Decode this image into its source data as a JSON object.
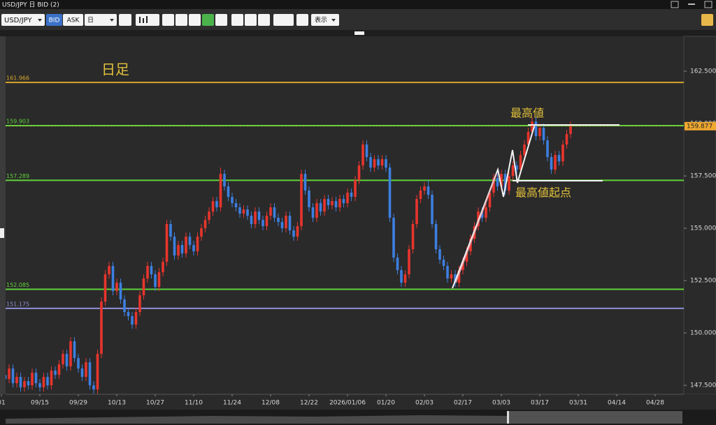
{
  "window": {
    "title": "USD/JPY 日 BID (2)",
    "toolbar": {
      "symbol": "USD/JPY",
      "bid": "BID",
      "ask": "ASK",
      "period": "日",
      "view": "表示"
    }
  },
  "chart_data": {
    "type": "candlestick",
    "annotations": {
      "label": "日足",
      "high": "最高値",
      "high_origin": "最高値起点"
    },
    "up_color": "#e8352d",
    "down_color": "#3d7fe0",
    "last_price": 159.877,
    "ylim": [
      147.07,
      164.17
    ],
    "yticks": [
      {
        "value": 147.5,
        "label": "147.500"
      },
      {
        "value": 150,
        "label": "150.000"
      },
      {
        "value": 152.5,
        "label": "152.500"
      },
      {
        "value": 155,
        "label": "155.000"
      },
      {
        "value": 157.5,
        "label": "157.500"
      },
      {
        "value": 160,
        "label": "160.000"
      },
      {
        "value": 162.5,
        "label": "162.500"
      }
    ],
    "levels": [
      {
        "value": 161.966,
        "color": "#d9a62e"
      },
      {
        "value": 159.903,
        "color": "#5fd33a"
      },
      {
        "value": 157.289,
        "color": "#5fd33a"
      },
      {
        "value": 152.085,
        "color": "#5fd33a"
      },
      {
        "value": 151.175,
        "color": "#8f8fd8"
      }
    ],
    "categories": [
      "01",
      null,
      null,
      null,
      null,
      null,
      null,
      null,
      null,
      null,
      "09/15",
      null,
      null,
      null,
      null,
      null,
      null,
      null,
      null,
      null,
      "09/29",
      null,
      null,
      null,
      null,
      null,
      null,
      null,
      null,
      null,
      "10/13",
      null,
      null,
      null,
      null,
      null,
      null,
      null,
      null,
      null,
      "10/27",
      null,
      null,
      null,
      null,
      null,
      null,
      null,
      null,
      null,
      "11/10",
      null,
      null,
      null,
      null,
      null,
      null,
      null,
      null,
      null,
      "11/24",
      null,
      null,
      null,
      null,
      null,
      null,
      null,
      null,
      null,
      "12/08",
      null,
      null,
      null,
      null,
      null,
      null,
      null,
      null,
      null,
      "12/22",
      null,
      null,
      null,
      null,
      null,
      null,
      null,
      null,
      null,
      "2026/01/06",
      null,
      null,
      null,
      null,
      null,
      null,
      null,
      null,
      null,
      "01/20",
      null,
      null,
      null,
      null,
      null,
      null,
      null,
      null,
      null,
      "02/03",
      null,
      null,
      null,
      null,
      null,
      null,
      null,
      null,
      null,
      "02/17",
      null,
      null,
      null,
      null,
      null,
      null,
      null,
      null,
      null,
      "03/03",
      null,
      null,
      null,
      null,
      null,
      null,
      null,
      null,
      null,
      "03/17",
      null,
      null,
      null,
      null,
      null,
      null,
      null,
      null,
      null,
      "03/31",
      null,
      null,
      null,
      null,
      null,
      null,
      null,
      null,
      null,
      "04/14",
      null,
      null,
      null,
      null,
      null,
      null,
      null,
      null,
      null,
      "04/28",
      null,
      null,
      null,
      null,
      null
    ],
    "ohlc": [
      [
        148.2,
        148.4,
        147.8,
        148.0
      ],
      [
        148.0,
        148.2,
        147.6,
        147.8
      ],
      [
        147.8,
        148.5,
        147.6,
        148.3
      ],
      [
        148.3,
        148.5,
        147.4,
        147.6
      ],
      [
        147.6,
        148.1,
        147.4,
        147.9
      ],
      [
        147.9,
        148.1,
        147.2,
        147.4
      ],
      [
        147.4,
        147.9,
        147.2,
        147.7
      ],
      [
        147.7,
        147.9,
        147.3,
        147.5
      ],
      [
        147.5,
        148.3,
        147.3,
        148.1
      ],
      [
        148.1,
        148.3,
        147.4,
        147.6
      ],
      [
        147.6,
        147.8,
        147.2,
        147.4
      ],
      [
        147.4,
        148.1,
        147.2,
        147.9
      ],
      [
        147.9,
        148.1,
        147.3,
        147.5
      ],
      [
        147.5,
        148.4,
        147.3,
        148.2
      ],
      [
        148.2,
        148.4,
        147.8,
        148.0
      ],
      [
        148.0,
        148.7,
        147.8,
        148.5
      ],
      [
        148.5,
        149.2,
        148.3,
        149.0
      ],
      [
        149.0,
        149.2,
        148.2,
        148.4
      ],
      [
        148.4,
        149.8,
        148.2,
        149.6
      ],
      [
        149.6,
        149.8,
        148.6,
        148.8
      ],
      [
        148.8,
        149.0,
        148.1,
        148.3
      ],
      [
        148.3,
        148.5,
        147.7,
        147.9
      ],
      [
        147.9,
        148.8,
        147.7,
        148.6
      ],
      [
        148.6,
        148.8,
        147.3,
        147.5
      ],
      [
        147.5,
        147.7,
        147.1,
        147.3
      ],
      [
        147.3,
        149.2,
        147.1,
        149.0
      ],
      [
        149.0,
        151.7,
        148.8,
        151.5
      ],
      [
        151.5,
        153.0,
        151.3,
        152.8
      ],
      [
        152.8,
        153.4,
        152.6,
        153.2
      ],
      [
        153.2,
        153.4,
        151.8,
        152.0
      ],
      [
        152.0,
        152.6,
        151.8,
        152.4
      ],
      [
        152.4,
        152.6,
        151.4,
        151.6
      ],
      [
        151.6,
        151.8,
        150.8,
        151.0
      ],
      [
        151.0,
        151.2,
        150.6,
        150.8
      ],
      [
        150.8,
        151.0,
        150.2,
        150.4
      ],
      [
        150.4,
        151.2,
        150.2,
        151.0
      ],
      [
        151.0,
        152.0,
        150.8,
        151.8
      ],
      [
        151.8,
        152.8,
        151.6,
        152.6
      ],
      [
        152.6,
        153.4,
        152.4,
        153.2
      ],
      [
        153.2,
        153.4,
        152.6,
        152.8
      ],
      [
        152.8,
        153.0,
        152.0,
        152.2
      ],
      [
        152.2,
        153.1,
        152.0,
        152.9
      ],
      [
        152.9,
        153.6,
        152.7,
        153.4
      ],
      [
        153.4,
        155.4,
        153.2,
        155.2
      ],
      [
        155.2,
        155.4,
        154.4,
        154.6
      ],
      [
        154.6,
        154.8,
        153.5,
        153.7
      ],
      [
        153.7,
        154.4,
        153.5,
        154.2
      ],
      [
        154.2,
        154.4,
        153.6,
        153.8
      ],
      [
        153.8,
        154.8,
        153.6,
        154.6
      ],
      [
        154.6,
        154.8,
        154.0,
        154.2
      ],
      [
        154.2,
        154.4,
        153.7,
        153.9
      ],
      [
        153.9,
        154.8,
        153.7,
        154.6
      ],
      [
        154.6,
        155.2,
        154.4,
        155.0
      ],
      [
        155.0,
        155.6,
        154.8,
        155.4
      ],
      [
        155.4,
        156.0,
        155.2,
        155.8
      ],
      [
        155.8,
        156.5,
        155.6,
        156.3
      ],
      [
        156.3,
        156.5,
        155.8,
        156.0
      ],
      [
        156.0,
        157.9,
        155.8,
        157.6
      ],
      [
        157.6,
        157.8,
        156.8,
        157.0
      ],
      [
        157.0,
        157.2,
        156.3,
        156.5
      ],
      [
        156.5,
        156.7,
        156.0,
        156.2
      ],
      [
        156.2,
        156.4,
        155.8,
        156.0
      ],
      [
        156.0,
        156.2,
        155.5,
        155.7
      ],
      [
        155.7,
        156.1,
        155.5,
        155.9
      ],
      [
        155.9,
        156.1,
        155.4,
        155.6
      ],
      [
        155.6,
        155.8,
        155.0,
        155.2
      ],
      [
        155.2,
        156.0,
        155.0,
        155.8
      ],
      [
        155.8,
        156.0,
        155.2,
        155.4
      ],
      [
        155.4,
        155.6,
        154.9,
        155.1
      ],
      [
        155.1,
        155.8,
        154.9,
        155.6
      ],
      [
        155.6,
        156.2,
        155.4,
        156.0
      ],
      [
        156.0,
        156.2,
        155.3,
        155.5
      ],
      [
        155.5,
        155.7,
        155.1,
        155.3
      ],
      [
        155.3,
        155.5,
        154.8,
        155.0
      ],
      [
        155.0,
        155.8,
        154.8,
        155.6
      ],
      [
        155.6,
        155.8,
        154.7,
        154.9
      ],
      [
        154.9,
        155.1,
        154.4,
        154.6
      ],
      [
        154.6,
        155.3,
        154.4,
        155.1
      ],
      [
        155.1,
        157.8,
        154.9,
        157.6
      ],
      [
        157.6,
        157.8,
        156.6,
        156.8
      ],
      [
        156.8,
        157.0,
        155.8,
        156.0
      ],
      [
        156.0,
        156.2,
        155.3,
        155.5
      ],
      [
        155.5,
        156.4,
        155.3,
        156.2
      ],
      [
        156.2,
        156.4,
        155.6,
        155.8
      ],
      [
        155.8,
        156.6,
        155.6,
        156.4
      ],
      [
        156.4,
        156.6,
        155.9,
        156.1
      ],
      [
        156.1,
        156.5,
        155.9,
        156.3
      ],
      [
        156.3,
        156.5,
        155.8,
        156.0
      ],
      [
        156.0,
        156.6,
        155.8,
        156.4
      ],
      [
        156.4,
        156.6,
        156.0,
        156.2
      ],
      [
        156.2,
        156.9,
        156.0,
        156.7
      ],
      [
        156.7,
        156.9,
        156.3,
        156.5
      ],
      [
        156.5,
        157.5,
        156.3,
        157.3
      ],
      [
        157.3,
        158.2,
        157.1,
        158.0
      ],
      [
        158.0,
        159.2,
        157.8,
        159.0
      ],
      [
        159.0,
        159.2,
        158.2,
        158.4
      ],
      [
        158.4,
        158.6,
        157.7,
        157.9
      ],
      [
        157.9,
        158.5,
        157.7,
        158.3
      ],
      [
        158.3,
        158.5,
        157.8,
        158.0
      ],
      [
        158.0,
        158.5,
        157.8,
        158.3
      ],
      [
        158.3,
        158.5,
        157.7,
        157.9
      ],
      [
        157.9,
        158.1,
        155.3,
        155.5
      ],
      [
        155.5,
        155.7,
        153.4,
        153.6
      ],
      [
        153.6,
        153.8,
        152.8,
        153.0
      ],
      [
        153.0,
        153.2,
        152.2,
        152.4
      ],
      [
        152.4,
        153.0,
        152.2,
        152.8
      ],
      [
        152.8,
        154.2,
        152.6,
        154.0
      ],
      [
        154.0,
        155.4,
        153.8,
        155.2
      ],
      [
        155.2,
        156.6,
        155.0,
        156.4
      ],
      [
        156.4,
        157.0,
        156.2,
        156.8
      ],
      [
        156.8,
        157.2,
        156.6,
        157.0
      ],
      [
        157.0,
        157.3,
        156.4,
        156.6
      ],
      [
        156.6,
        156.8,
        155.0,
        155.2
      ],
      [
        155.2,
        155.4,
        153.8,
        154.0
      ],
      [
        154.0,
        154.2,
        153.3,
        153.5
      ],
      [
        153.5,
        153.7,
        153.0,
        153.2
      ],
      [
        153.2,
        153.4,
        152.4,
        152.6
      ],
      [
        152.6,
        153.0,
        152.4,
        152.8
      ],
      [
        152.8,
        153.0,
        152.2,
        152.4
      ],
      [
        152.4,
        153.2,
        152.2,
        153.0
      ],
      [
        153.0,
        153.6,
        152.8,
        153.4
      ],
      [
        153.4,
        154.1,
        153.2,
        153.9
      ],
      [
        153.9,
        154.7,
        153.7,
        154.5
      ],
      [
        154.5,
        155.3,
        154.3,
        155.1
      ],
      [
        155.1,
        156.0,
        154.9,
        155.8
      ],
      [
        155.8,
        156.0,
        155.3,
        155.5
      ],
      [
        155.5,
        156.2,
        155.3,
        156.0
      ],
      [
        156.0,
        156.9,
        155.8,
        156.7
      ],
      [
        156.7,
        157.6,
        156.5,
        157.4
      ],
      [
        157.4,
        157.6,
        156.8,
        157.0
      ],
      [
        157.0,
        157.8,
        156.8,
        157.6
      ],
      [
        157.6,
        157.8,
        156.6,
        156.8
      ],
      [
        156.8,
        157.7,
        156.6,
        157.5
      ],
      [
        157.5,
        158.2,
        157.3,
        158.0
      ],
      [
        158.0,
        158.2,
        157.6,
        157.8
      ],
      [
        157.8,
        158.7,
        157.6,
        158.5
      ],
      [
        158.5,
        159.2,
        158.3,
        159.0
      ],
      [
        159.0,
        159.8,
        158.8,
        159.6
      ],
      [
        159.6,
        160.3,
        159.4,
        160.1
      ],
      [
        160.1,
        160.3,
        159.2,
        159.4
      ],
      [
        159.4,
        160.0,
        159.2,
        159.8
      ],
      [
        159.8,
        160.0,
        159.0,
        159.2
      ],
      [
        159.2,
        159.4,
        158.2,
        158.4
      ],
      [
        158.4,
        158.6,
        157.6,
        157.8
      ],
      [
        157.8,
        158.7,
        157.6,
        158.5
      ],
      [
        158.5,
        158.7,
        158.0,
        158.2
      ],
      [
        158.2,
        159.2,
        158.0,
        159.0
      ],
      [
        159.0,
        159.7,
        158.8,
        159.5
      ],
      [
        159.5,
        160.1,
        159.3,
        159.877
      ],
      null,
      null,
      null,
      null,
      null,
      null,
      null,
      null,
      null,
      null,
      null,
      null,
      null,
      null,
      null,
      null,
      null,
      null,
      null,
      null,
      null,
      null,
      null,
      null,
      null,
      null,
      null
    ]
  }
}
